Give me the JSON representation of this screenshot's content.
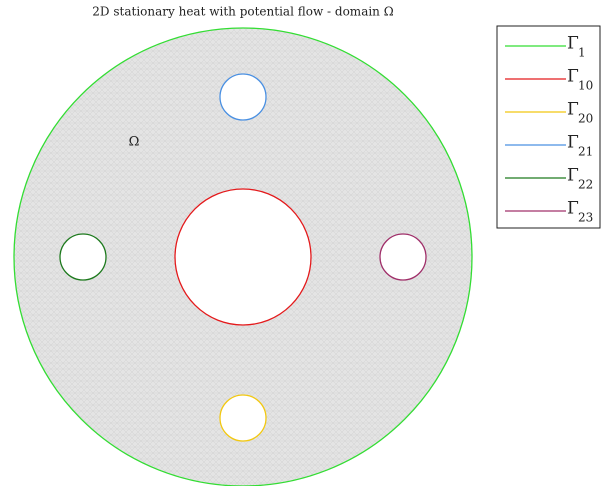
{
  "title": "2D stationary heat with potential flow - domain Ω",
  "annotation": "Ω",
  "legend": [
    {
      "symbol": "Γ",
      "subscript": "1",
      "color": "#33dd33"
    },
    {
      "symbol": "Γ",
      "subscript": "10",
      "color": "#e41a1c"
    },
    {
      "symbol": "Γ",
      "subscript": "20",
      "color": "#f2c811"
    },
    {
      "symbol": "Γ",
      "subscript": "21",
      "color": "#4a90e2"
    },
    {
      "symbol": "Γ",
      "subscript": "22",
      "color": "#1e7a1e"
    },
    {
      "symbol": "Γ",
      "subscript": "23",
      "color": "#a0306a"
    }
  ]
}
